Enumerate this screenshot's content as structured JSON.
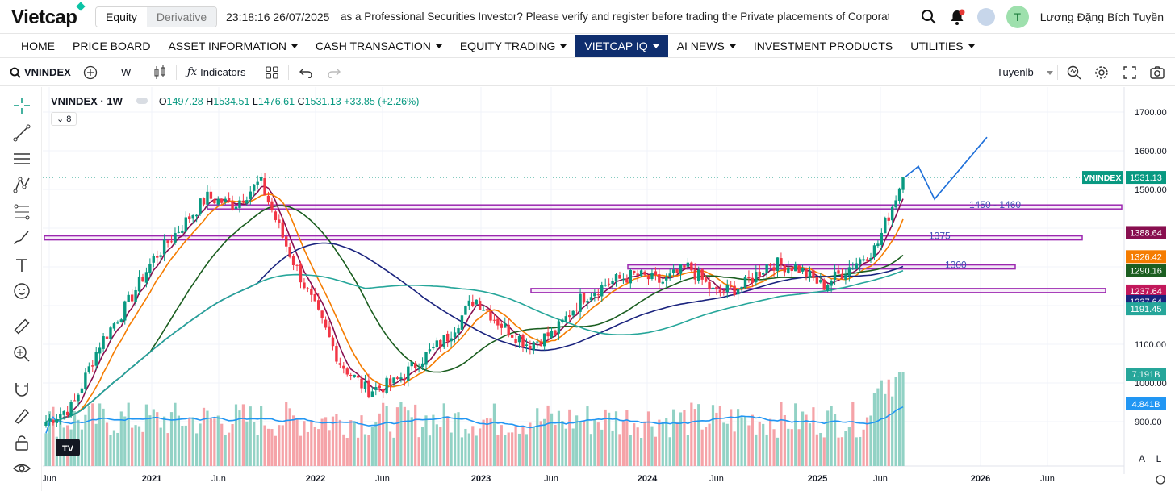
{
  "brand": {
    "logo": "Vietcap"
  },
  "market_tabs": {
    "equity": "Equity",
    "derivative": "Derivative"
  },
  "clock": "23:18:16 26/07/2025",
  "ticker": "as a Professional Securities Investor? Please verify and register before trading the Private placements of Corporate bo",
  "user": {
    "initial": "T",
    "name": "Lương Đặng Bích Tuyền"
  },
  "nav": [
    "PRICE BOARD",
    "ASSET INFORMATION",
    "CASH TRANSACTION",
    "EQUITY TRADING",
    "VIETCAP IQ",
    "AI NEWS",
    "INVESTMENT PRODUCTS",
    "UTILITIES"
  ],
  "nav_home": "HOME",
  "toolbar": {
    "symbol": "VNINDEX",
    "interval": "W",
    "indicators": "Indicators",
    "layout_name": "Tuyenlb"
  },
  "legend": {
    "title": "VNINDEX · 1W",
    "o_label": "O",
    "o": "1497.28",
    "h_label": "H",
    "h": "1534.51",
    "l_label": "L",
    "l": "1476.61",
    "c_label": "C",
    "c": "1531.13",
    "change": "+33.85 (+2.26%)",
    "collapsed_count": "8"
  },
  "chart_data": {
    "type": "candlestick",
    "symbol": "VNINDEX",
    "interval": "1W",
    "y_ticks": [
      "1700.00",
      "1600.00",
      "1500.00",
      "1100.00",
      "1000.00",
      "900.00"
    ],
    "ylim": [
      820,
      1740
    ],
    "x_ticks": [
      "Jun",
      "2021",
      "Jun",
      "2022",
      "Jun",
      "2023",
      "Jun",
      "2024",
      "Jun",
      "2025",
      "Jun",
      "2026",
      "Jun"
    ],
    "price_labels": [
      {
        "text": "VNINDEX",
        "value": "1531.13",
        "color": "#089981"
      },
      {
        "text": "",
        "value": "1388.64",
        "color": "#880e4f"
      },
      {
        "text": "",
        "value": "1326.42",
        "color": "#f57c00"
      },
      {
        "text": "",
        "value": "1290.16",
        "color": "#1b5e20"
      },
      {
        "text": "",
        "value": "1237.64",
        "color": "#c2185b"
      },
      {
        "text": "",
        "value": "1237.64",
        "color": "#1a237e"
      },
      {
        "text": "",
        "value": "1191.45",
        "color": "#26a69a"
      }
    ],
    "volume_labels": [
      {
        "value": "7.191B",
        "color": "#26a69a"
      },
      {
        "value": "4.841B",
        "color": "#2196f3"
      }
    ],
    "zones": [
      {
        "label": "1450 - 1460",
        "low": 1450,
        "high": 1460
      },
      {
        "label": "1375",
        "low": 1370,
        "high": 1380
      },
      {
        "label": "1300",
        "low": 1295,
        "high": 1305
      },
      {
        "label": "",
        "low": 1237,
        "high": 1244
      }
    ],
    "projection_points": [
      1531,
      1560,
      1475,
      1635
    ],
    "keypoints_close": [
      900,
      940,
      1100,
      1200,
      1320,
      1400,
      1480,
      1460,
      1520,
      1350,
      1200,
      1050,
      980,
      1000,
      1060,
      1120,
      1220,
      1150,
      1100,
      1130,
      1220,
      1260,
      1280,
      1260,
      1300,
      1230,
      1250,
      1310,
      1300,
      1250,
      1300,
      1350,
      1531
    ],
    "scale_buttons": {
      "a": "A",
      "l": "L"
    }
  }
}
